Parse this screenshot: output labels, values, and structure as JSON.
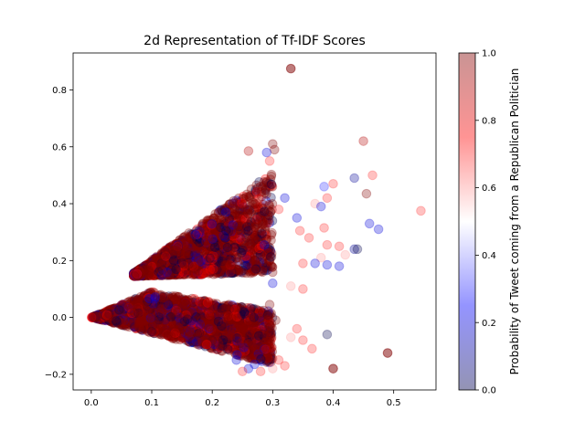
{
  "chart_data": {
    "type": "scatter",
    "title": "2d Representation of Tf-IDF Scores",
    "xlabel": "",
    "ylabel": "",
    "xlim": [
      -0.03,
      0.57
    ],
    "ylim": [
      -0.255,
      0.93
    ],
    "x_ticks": [
      0.0,
      0.1,
      0.2,
      0.3,
      0.4,
      0.5
    ],
    "x_tick_labels": [
      "0.0",
      "0.1",
      "0.2",
      "0.3",
      "0.4",
      "0.5"
    ],
    "y_ticks": [
      -0.2,
      0.0,
      0.2,
      0.4,
      0.6,
      0.8
    ],
    "y_tick_labels": [
      "−0.2",
      "0.0",
      "0.2",
      "0.4",
      "0.6",
      "0.8"
    ],
    "grid": false,
    "marker_alpha": 0.3,
    "colormap": {
      "name": "seismic",
      "stops": [
        "#00004c",
        "#0000ff",
        "#ffffff",
        "#ff0000",
        "#800000"
      ]
    },
    "colorbar": {
      "label": "Probability of Tweet coming from a Republican Politician",
      "range": [
        0.0,
        1.0
      ],
      "ticks": [
        0.0,
        0.2,
        0.4,
        0.6,
        0.8,
        1.0
      ],
      "tick_labels": [
        "0.0",
        "0.2",
        "0.4",
        "0.6",
        "0.8",
        "1.0"
      ]
    },
    "clusters": [
      {
        "name": "upper",
        "approx_points": 2000,
        "description_values": {
          "x_range": [
            0.07,
            0.3
          ],
          "y_range": [
            0.14,
            0.5
          ]
        }
      },
      {
        "name": "lower",
        "approx_points": 2000,
        "description_values": {
          "x_range": [
            0.0,
            0.3
          ],
          "y_range": [
            -0.17,
            0.09
          ]
        }
      }
    ],
    "outliers": [
      {
        "x": 0.33,
        "y": 0.875,
        "p": 1.0
      },
      {
        "x": 0.33,
        "y": 0.875,
        "p": 1.0
      },
      {
        "x": 0.3,
        "y": 0.61,
        "p": 1.0
      },
      {
        "x": 0.303,
        "y": 0.59,
        "p": 1.0
      },
      {
        "x": 0.26,
        "y": 0.585,
        "p": 0.9
      },
      {
        "x": 0.29,
        "y": 0.58,
        "p": 0.2
      },
      {
        "x": 0.295,
        "y": 0.55,
        "p": 0.7
      },
      {
        "x": 0.45,
        "y": 0.62,
        "p": 0.9
      },
      {
        "x": 0.465,
        "y": 0.5,
        "p": 0.7
      },
      {
        "x": 0.435,
        "y": 0.49,
        "p": 0.1
      },
      {
        "x": 0.455,
        "y": 0.435,
        "p": 1.0
      },
      {
        "x": 0.4,
        "y": 0.47,
        "p": 0.7
      },
      {
        "x": 0.385,
        "y": 0.46,
        "p": 0.3
      },
      {
        "x": 0.39,
        "y": 0.42,
        "p": 0.7
      },
      {
        "x": 0.37,
        "y": 0.4,
        "p": 0.6
      },
      {
        "x": 0.38,
        "y": 0.39,
        "p": 0.2
      },
      {
        "x": 0.46,
        "y": 0.33,
        "p": 0.2
      },
      {
        "x": 0.475,
        "y": 0.31,
        "p": 0.2
      },
      {
        "x": 0.545,
        "y": 0.375,
        "p": 0.7
      },
      {
        "x": 0.385,
        "y": 0.315,
        "p": 0.7
      },
      {
        "x": 0.39,
        "y": 0.255,
        "p": 0.7
      },
      {
        "x": 0.41,
        "y": 0.25,
        "p": 0.7
      },
      {
        "x": 0.435,
        "y": 0.24,
        "p": 0.1
      },
      {
        "x": 0.44,
        "y": 0.24,
        "p": 0.0
      },
      {
        "x": 0.42,
        "y": 0.22,
        "p": 0.6
      },
      {
        "x": 0.38,
        "y": 0.21,
        "p": 0.6
      },
      {
        "x": 0.37,
        "y": 0.19,
        "p": 0.2
      },
      {
        "x": 0.39,
        "y": 0.185,
        "p": 0.2
      },
      {
        "x": 0.41,
        "y": 0.18,
        "p": 0.2
      },
      {
        "x": 0.35,
        "y": 0.19,
        "p": 0.7
      },
      {
        "x": 0.34,
        "y": 0.35,
        "p": 0.2
      },
      {
        "x": 0.345,
        "y": 0.305,
        "p": 0.7
      },
      {
        "x": 0.36,
        "y": 0.28,
        "p": 0.7
      },
      {
        "x": 0.32,
        "y": 0.42,
        "p": 0.2
      },
      {
        "x": 0.31,
        "y": 0.38,
        "p": 0.7
      },
      {
        "x": 0.35,
        "y": 0.1,
        "p": 0.7
      },
      {
        "x": 0.33,
        "y": 0.11,
        "p": 0.6
      },
      {
        "x": 0.3,
        "y": 0.12,
        "p": 0.2
      },
      {
        "x": 0.295,
        "y": 0.045,
        "p": 1.0
      },
      {
        "x": 0.305,
        "y": -0.01,
        "p": 1.0
      },
      {
        "x": 0.34,
        "y": -0.04,
        "p": 0.7
      },
      {
        "x": 0.35,
        "y": -0.08,
        "p": 0.7
      },
      {
        "x": 0.365,
        "y": -0.11,
        "p": 0.7
      },
      {
        "x": 0.39,
        "y": -0.06,
        "p": 0.0
      },
      {
        "x": 0.4,
        "y": -0.18,
        "p": 1.0
      },
      {
        "x": 0.4,
        "y": -0.18,
        "p": 1.0
      },
      {
        "x": 0.49,
        "y": -0.125,
        "p": 1.0
      },
      {
        "x": 0.49,
        "y": -0.125,
        "p": 1.0
      },
      {
        "x": 0.32,
        "y": -0.17,
        "p": 0.7
      },
      {
        "x": 0.31,
        "y": -0.15,
        "p": 0.7
      },
      {
        "x": 0.3,
        "y": -0.18,
        "p": 0.6
      },
      {
        "x": 0.28,
        "y": -0.19,
        "p": 0.7
      },
      {
        "x": 0.26,
        "y": -0.18,
        "p": 0.2
      },
      {
        "x": 0.25,
        "y": -0.19,
        "p": 0.7
      },
      {
        "x": 0.27,
        "y": -0.165,
        "p": 0.2
      },
      {
        "x": 0.24,
        "y": -0.15,
        "p": 0.2
      },
      {
        "x": 0.33,
        "y": -0.07,
        "p": 0.6
      }
    ]
  }
}
